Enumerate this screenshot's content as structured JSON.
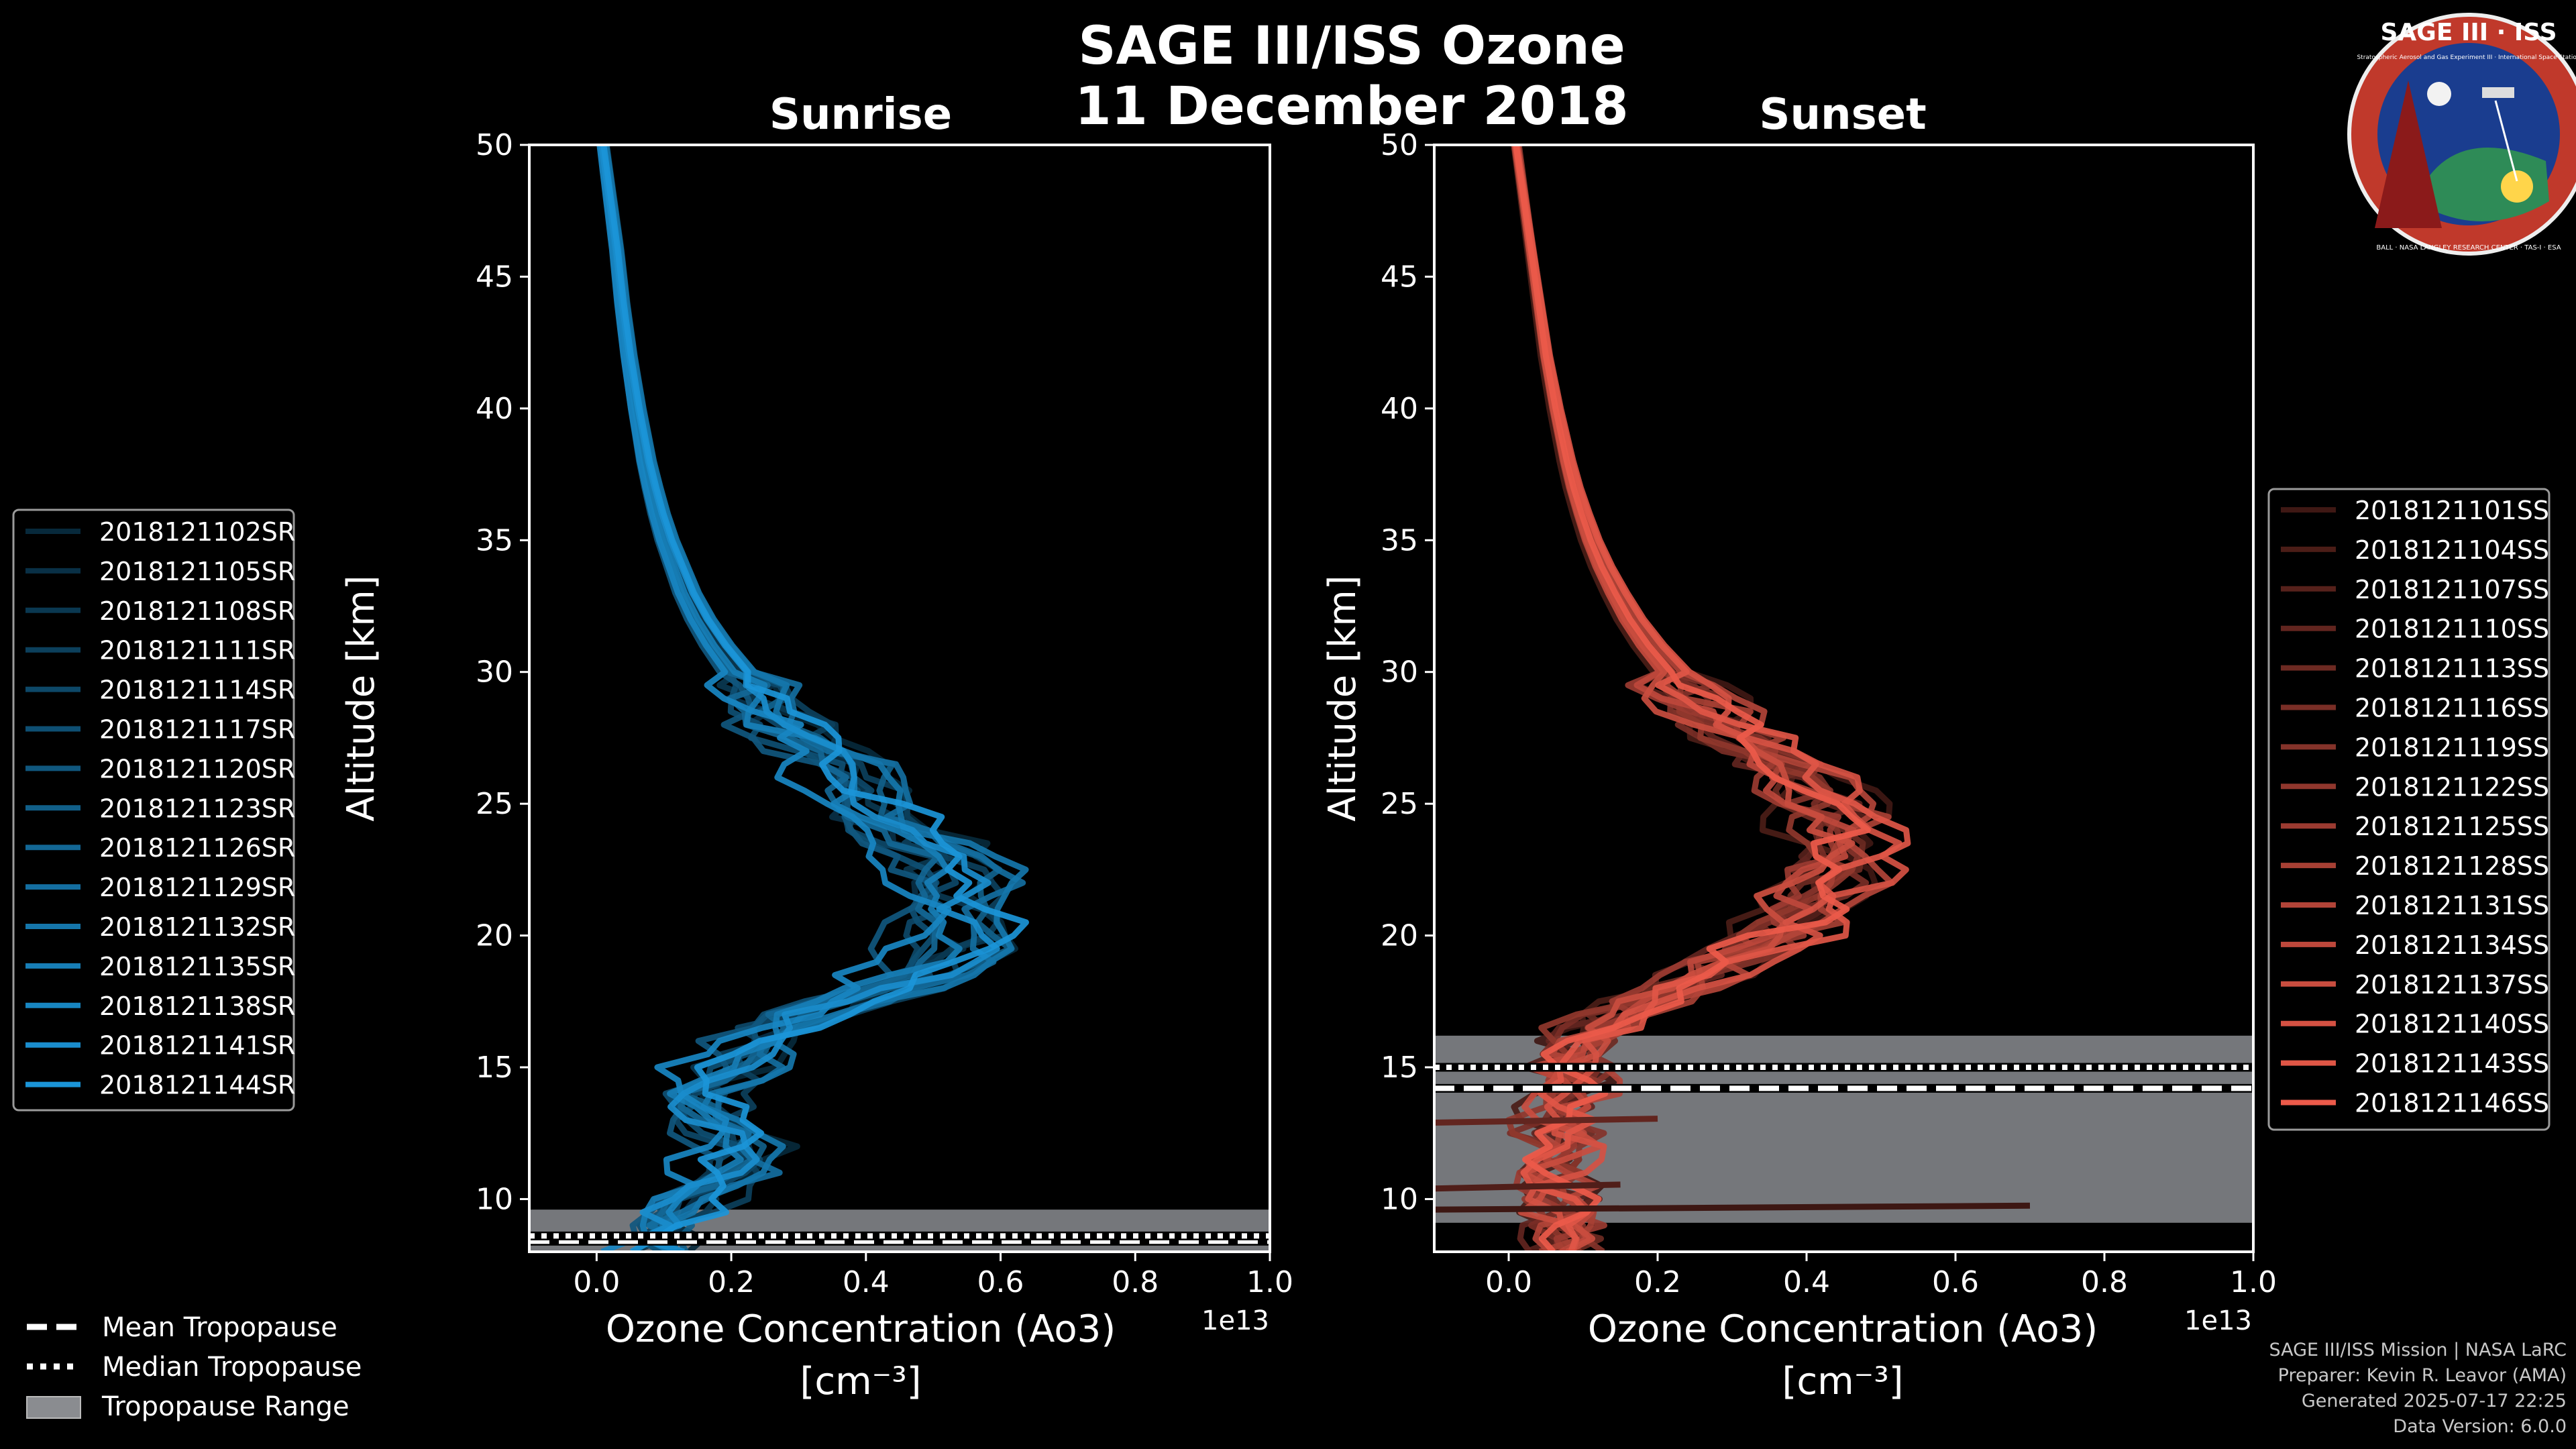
{
  "title_line1": "SAGE III/ISS Ozone",
  "title_line2": "11 December 2018",
  "logo": {
    "text_top": "SAGE III · ISS",
    "text_sub": "Stratospheric Aerosol and Gas Experiment III · International Space Station",
    "text_ring": "BALL · NASA LANGLEY RESEARCH CENTER · TAS-I · ESA"
  },
  "credits": [
    "SAGE III/ISS Mission | NASA LaRC",
    "Preparer: Kevin R. Leavor (AMA)",
    "Generated 2025-07-17 22:25",
    "Data Version: 6.0.0"
  ],
  "colors": {
    "sunrise": "#1b95d8",
    "sunset": "#ec5a4a",
    "tropo_band": "#8a8c90",
    "axis": "#ffffff"
  },
  "chart_data": [
    {
      "type": "line",
      "title": "Sunrise",
      "xlabel": "Ozone Concentration (Ao3)",
      "xlabel_units": "[cm⁻³]",
      "x_offset_text": "1e13",
      "ylabel": "Altitude [km]",
      "xlim": [
        -0.1,
        1.0
      ],
      "ylim": [
        8,
        50
      ],
      "xticks": [
        0.0,
        0.2,
        0.4,
        0.6,
        0.8,
        1.0
      ],
      "xtick_labels": [
        "0.0",
        "0.2",
        "0.4",
        "0.6",
        "0.8",
        "1.0"
      ],
      "yticks": [
        10,
        15,
        20,
        25,
        30,
        35,
        40,
        45,
        50
      ],
      "ytick_labels": [
        "10",
        "15",
        "20",
        "25",
        "30",
        "35",
        "40",
        "45",
        "50"
      ],
      "tropopause": {
        "mean": 8.4,
        "median": 8.6,
        "range": [
          8,
          9.6
        ]
      },
      "legend": {
        "position": "left",
        "entries": [
          "2018121102SR",
          "2018121105SR",
          "2018121108SR",
          "2018121111SR",
          "2018121114SR",
          "2018121117SR",
          "2018121120SR",
          "2018121123SR",
          "2018121126SR",
          "2018121129SR",
          "2018121132SR",
          "2018121135SR",
          "2018121138SR",
          "2018121141SR",
          "2018121144SR"
        ]
      },
      "mean_profile": {
        "altitude": [
          8.5,
          10,
          11,
          12,
          13,
          14,
          15,
          16,
          17,
          18,
          19,
          20,
          21,
          22,
          23,
          24,
          25,
          26,
          27,
          28,
          29,
          30,
          31,
          32,
          33,
          34,
          35,
          36,
          37,
          38,
          40,
          42,
          44,
          46,
          48,
          50
        ],
        "ozone": [
          0.08,
          0.16,
          0.2,
          0.2,
          0.18,
          0.16,
          0.19,
          0.24,
          0.33,
          0.43,
          0.5,
          0.54,
          0.54,
          0.52,
          0.49,
          0.45,
          0.41,
          0.37,
          0.33,
          0.29,
          0.25,
          0.21,
          0.18,
          0.155,
          0.135,
          0.12,
          0.105,
          0.093,
          0.083,
          0.074,
          0.06,
          0.048,
          0.038,
          0.03,
          0.02,
          0.01
        ]
      }
    },
    {
      "type": "line",
      "title": "Sunset",
      "xlabel": "Ozone Concentration (Ao3)",
      "xlabel_units": "[cm⁻³]",
      "x_offset_text": "1e13",
      "ylabel": "Altitude [km]",
      "xlim": [
        -0.1,
        1.0
      ],
      "ylim": [
        8,
        50
      ],
      "xticks": [
        0.0,
        0.2,
        0.4,
        0.6,
        0.8,
        1.0
      ],
      "xtick_labels": [
        "0.0",
        "0.2",
        "0.4",
        "0.6",
        "0.8",
        "1.0"
      ],
      "yticks": [
        10,
        15,
        20,
        25,
        30,
        35,
        40,
        45,
        50
      ],
      "ytick_labels": [
        "10",
        "15",
        "20",
        "25",
        "30",
        "35",
        "40",
        "45",
        "50"
      ],
      "tropopause": {
        "mean": 14.2,
        "median": 15.0,
        "range": [
          9.1,
          16.2
        ]
      },
      "legend": {
        "position": "right",
        "entries": [
          "2018121101SS",
          "2018121104SS",
          "2018121107SS",
          "2018121110SS",
          "2018121113SS",
          "2018121116SS",
          "2018121119SS",
          "2018121122SS",
          "2018121125SS",
          "2018121128SS",
          "2018121131SS",
          "2018121134SS",
          "2018121137SS",
          "2018121140SS",
          "2018121143SS",
          "2018121146SS"
        ]
      },
      "mean_profile": {
        "altitude": [
          8.5,
          10,
          11,
          12,
          13,
          14,
          15,
          16,
          17,
          18,
          19,
          20,
          21,
          22,
          23,
          24,
          25,
          26,
          27,
          28,
          29,
          30,
          31,
          32,
          33,
          34,
          35,
          36,
          37,
          38,
          40,
          42,
          44,
          46,
          48,
          50
        ],
        "ozone": [
          0.08,
          0.08,
          0.07,
          0.08,
          0.08,
          0.09,
          0.09,
          0.1,
          0.16,
          0.24,
          0.31,
          0.37,
          0.41,
          0.44,
          0.46,
          0.46,
          0.44,
          0.4,
          0.35,
          0.3,
          0.26,
          0.22,
          0.19,
          0.165,
          0.145,
          0.127,
          0.112,
          0.1,
          0.089,
          0.08,
          0.065,
          0.052,
          0.042,
          0.032,
          0.022,
          0.012
        ]
      },
      "outliers": [
        {
          "altitude": 9.6,
          "ozone_left": -0.1,
          "ozone_right": 0.7
        },
        {
          "altitude": 10.4,
          "ozone_left": -0.1,
          "ozone_right": 0.15
        },
        {
          "altitude": 12.9,
          "ozone_left": -0.1,
          "ozone_right": 0.2
        }
      ]
    }
  ],
  "bottom_legend": {
    "mean_label": "Mean Tropopause",
    "median_label": "Median Tropopause",
    "range_label": "Tropopause Range"
  }
}
